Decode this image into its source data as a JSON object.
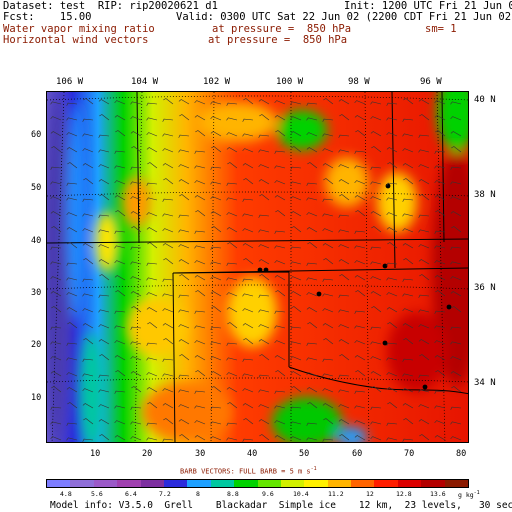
{
  "header": {
    "line1_left": "Dataset: test  RIP: rip20020621 d1",
    "line1_right": "Init: 1200 UTC Fri 21 Jun 02",
    "line2_left": "Fcst:    15.00",
    "line2_right": "Valid: 0300 UTC Sat 22 Jun 02 (2200 CDT Fri 21 Jun 02)",
    "field1": "Water vapor mixing ratio",
    "field1_level": "at pressure =  850 hPa",
    "field1_sm": "sm= 1",
    "field2": "Horizontal wind vectors",
    "field2_level": "at pressure =  850 hPa"
  },
  "lon_labels": [
    "106 W",
    "104 W",
    "102 W",
    "100 W",
    "98 W",
    "96 W"
  ],
  "lat_labels": [
    "40 N",
    "38 N",
    "36 N",
    "34 N"
  ],
  "y_ticks": [
    "10",
    "20",
    "30",
    "40",
    "50",
    "60"
  ],
  "x_ticks": [
    "10",
    "20",
    "30",
    "40",
    "50",
    "60",
    "70",
    "80"
  ],
  "barb_note": "BARB VECTORS:  FULL BARB = 5 m s",
  "barb_exp": "-1",
  "colorbar": {
    "labels": [
      "4.8",
      "5.6",
      "6.4",
      "7.2",
      "8",
      "8.8",
      "9.6",
      "10.4",
      "11.2",
      "12",
      "12.8",
      "13.6"
    ],
    "units": "g kg",
    "units_exp": "-1",
    "colors": [
      "#7d7dff",
      "#8f6ed8",
      "#9b59c8",
      "#a040b0",
      "#7d2fa0",
      "#2b2bdc",
      "#1ea0ff",
      "#00c8a0",
      "#00d200",
      "#64e600",
      "#d2f000",
      "#fff000",
      "#ffb400",
      "#ff6400",
      "#ff1e00",
      "#dc0000",
      "#b40000",
      "#8b1a00"
    ]
  },
  "footer": "Model info: V3.5.0  Grell    Blackadar  Simple ice    12 km,  23 levels,   30 sec"
}
